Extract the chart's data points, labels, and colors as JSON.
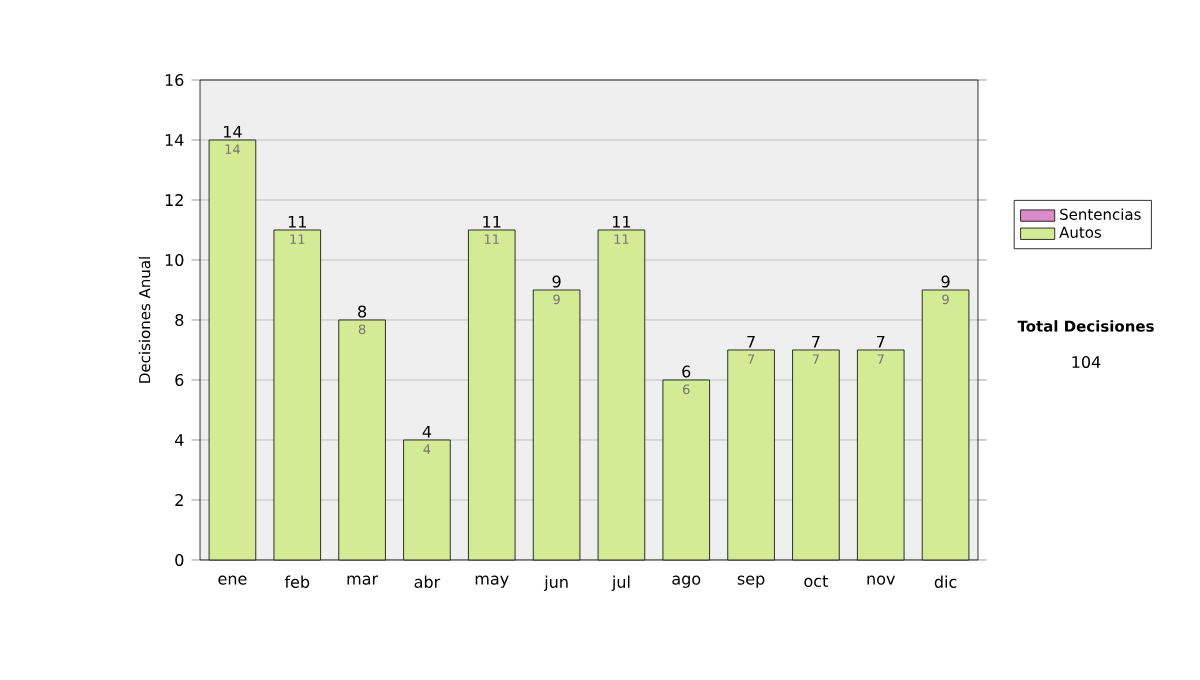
{
  "chart_data": {
    "type": "bar",
    "stacked": true,
    "ylabel": "Decisiones Anual",
    "categories": [
      "ene",
      "feb",
      "mar",
      "abr",
      "may",
      "jun",
      "jul",
      "ago",
      "sep",
      "oct",
      "nov",
      "dic"
    ],
    "series": [
      {
        "name": "Sentencias",
        "color": "#d98cc8",
        "values": [
          0,
          0,
          0,
          0,
          0,
          0,
          0,
          0,
          0,
          0,
          0,
          0
        ]
      },
      {
        "name": "Autos",
        "color": "#d4eb96",
        "values": [
          14,
          11,
          8,
          4,
          11,
          9,
          11,
          6,
          7,
          7,
          7,
          9
        ],
        "value_labels": [
          "14",
          "11",
          "8",
          "4",
          "11",
          "9",
          "11",
          "6",
          "7",
          "7",
          "7",
          "9"
        ]
      }
    ],
    "totals": [
      "14",
      "11",
      "8",
      "4",
      "11",
      "9",
      "11",
      "6",
      "7",
      "7",
      "7",
      "9"
    ],
    "ylim": [
      0,
      16
    ],
    "yticks": [
      0,
      2,
      4,
      6,
      8,
      10,
      12,
      14,
      16
    ],
    "grid": "y",
    "legend": "right",
    "annotations": [
      "Total Decisiones",
      "104"
    ]
  }
}
